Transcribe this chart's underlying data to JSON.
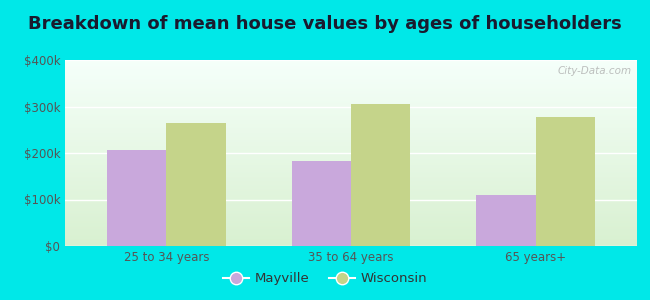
{
  "title": "Breakdown of mean house values by ages of householders",
  "categories": [
    "25 to 34 years",
    "35 to 64 years",
    "65 years+"
  ],
  "mayville_values": [
    207000,
    183000,
    110000
  ],
  "wisconsin_values": [
    265000,
    305000,
    278000
  ],
  "mayville_color": "#c9a8dc",
  "wisconsin_color": "#c5d48a",
  "ylim": [
    0,
    400000
  ],
  "yticks": [
    0,
    100000,
    200000,
    300000,
    400000
  ],
  "ytick_labels": [
    "$0",
    "$100k",
    "$200k",
    "$300k",
    "$400k"
  ],
  "background_color": "#00e8e8",
  "bar_width": 0.32,
  "legend_labels": [
    "Mayville",
    "Wisconsin"
  ],
  "watermark": "City-Data.com",
  "title_fontsize": 13,
  "tick_fontsize": 8.5,
  "legend_fontsize": 9.5,
  "gradient_top": "#f5fffa",
  "gradient_bottom": "#d8f0d0"
}
